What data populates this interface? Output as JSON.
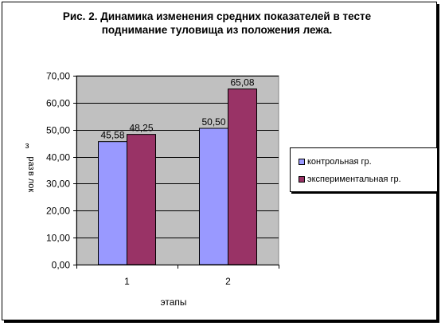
{
  "chart_data": {
    "type": "bar",
    "title": "Рис. 2. Динамика изменения средних показателей в тесте поднимание туловища из положения лежа.",
    "title_lines": [
      "Рис. 2. Динамика изменения средних показателей в тесте",
      "поднимание туловища из положения лежа."
    ],
    "xlabel": "этапы",
    "ylabel": "раз",
    "ylabel_prefix": "з",
    "ylabel_suffix": "в лок",
    "categories": [
      "1",
      "2"
    ],
    "series": [
      {
        "name": "контрольная  гр.",
        "values": [
          45.58,
          50.5
        ],
        "labels": [
          "45,58",
          "50,50"
        ],
        "color": "#9999ff"
      },
      {
        "name": "экспериментальная  гр.",
        "values": [
          48.25,
          65.08
        ],
        "labels": [
          "48,25",
          "65,08"
        ],
        "color": "#993366"
      }
    ],
    "ylim": [
      0,
      70
    ],
    "yticks": [
      0,
      10,
      20,
      30,
      40,
      50,
      60,
      70
    ],
    "ytick_labels": [
      "0,00",
      "10,00",
      "20,00",
      "30,00",
      "40,00",
      "50,00",
      "60,00",
      "70,00"
    ],
    "grid": true,
    "plot_background": "#c0c0c0",
    "legend_position": "right"
  }
}
